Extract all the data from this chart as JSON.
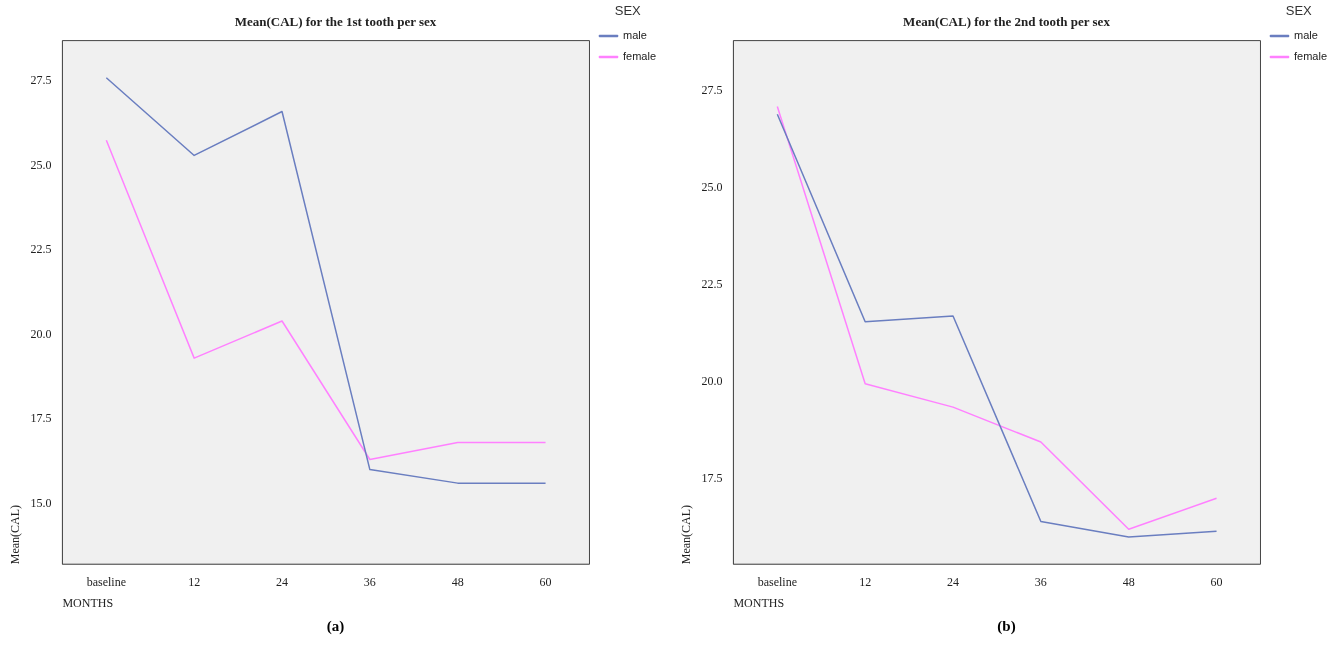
{
  "chart_data": [
    {
      "type": "line",
      "title": "Mean(CAL) for the 1st tooth per sex",
      "xlabel": "MONTHS",
      "ylabel": "Mean(CAL)",
      "legend_title": "SEX",
      "legend": "top right",
      "grid": false,
      "marker": "none",
      "line_style": "solid",
      "categories": [
        "baseline",
        "12",
        "24",
        "36",
        "48",
        "60"
      ],
      "series": [
        {
          "name": "male",
          "color": "#6a7ec0",
          "values": [
            27.6,
            25.3,
            26.6,
            16.0,
            15.6,
            15.6
          ]
        },
        {
          "name": "female",
          "color": "#ff80ff",
          "values": [
            25.75,
            19.3,
            20.4,
            16.3,
            16.8,
            16.8
          ]
        }
      ],
      "ylim": [
        13.2,
        28.7
      ],
      "yticks": [
        {
          "value": 15,
          "label": "15.0"
        },
        {
          "value": 17.5,
          "label": "17.5"
        },
        {
          "value": 20,
          "label": "20.0"
        },
        {
          "value": 22.5,
          "label": "22.5"
        },
        {
          "value": 25,
          "label": "25.0"
        },
        {
          "value": 27.5,
          "label": "27.5"
        }
      ],
      "annotations": [
        "(a)"
      ]
    },
    {
      "type": "line",
      "title": "Mean(CAL) for the 2nd tooth per sex",
      "xlabel": "MONTHS",
      "ylabel": "Mean(CAL)",
      "legend_title": "SEX",
      "legend": "top right",
      "grid": false,
      "marker": "none",
      "line_style": "solid",
      "categories": [
        "baseline",
        "12",
        "24",
        "36",
        "48",
        "60"
      ],
      "series": [
        {
          "name": "male",
          "color": "#6a7ec0",
          "values": [
            26.9,
            21.55,
            21.7,
            16.4,
            16.0,
            16.15
          ]
        },
        {
          "name": "female",
          "color": "#ff80ff",
          "values": [
            27.1,
            19.95,
            19.35,
            18.45,
            16.2,
            17.0
          ]
        }
      ],
      "ylim": [
        15.3,
        28.8
      ],
      "yticks": [
        {
          "value": 17.5,
          "label": "17.5"
        },
        {
          "value": 20,
          "label": "20.0"
        },
        {
          "value": 22.5,
          "label": "22.5"
        },
        {
          "value": 25,
          "label": "25.0"
        },
        {
          "value": 27.5,
          "label": "27.5"
        }
      ],
      "annotations": [
        "(b)"
      ]
    }
  ]
}
